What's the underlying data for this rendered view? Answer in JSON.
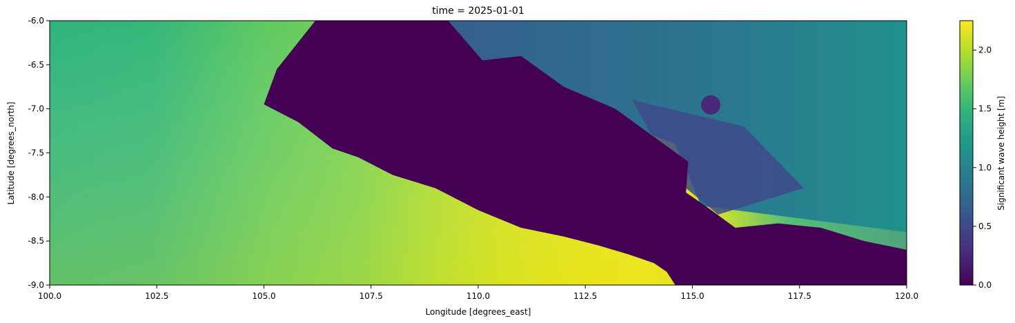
{
  "chart_data": {
    "type": "heatmap",
    "title": "time = 2025-01-01",
    "xlabel": "Longitude [degrees_east]",
    "ylabel": "Latitude [degrees_north]",
    "xlim": [
      100.0,
      120.0
    ],
    "ylim": [
      -9.0,
      -6.0
    ],
    "x_ticks": [
      "100.0",
      "102.5",
      "105.0",
      "107.5",
      "110.0",
      "112.5",
      "115.0",
      "117.5",
      "120.0"
    ],
    "y_ticks": [
      "-6.0",
      "-6.5",
      "-7.0",
      "-7.5",
      "-8.0",
      "-8.5",
      "-9.0"
    ],
    "x_tick_values": [
      100.0,
      102.5,
      105.0,
      107.5,
      110.0,
      112.5,
      115.0,
      117.5,
      120.0
    ],
    "y_tick_values": [
      -6.0,
      -6.5,
      -7.0,
      -7.5,
      -8.0,
      -8.5,
      -9.0
    ],
    "colorbar": {
      "label": "Significant wave height [m]",
      "range": [
        0.0,
        2.25
      ],
      "ticks": [
        "0.0",
        "0.5",
        "1.0",
        "1.5",
        "2.0"
      ],
      "tick_values": [
        0.0,
        0.5,
        1.0,
        1.5,
        2.0
      ],
      "colormap": "viridis"
    },
    "land_boundary_lon": [
      106.2,
      105.3,
      105.0,
      105.8,
      106.6,
      107.2,
      108.0,
      109.0,
      110.0,
      111.0,
      112.0,
      112.8,
      113.5,
      114.1,
      114.4,
      114.6
    ],
    "land_boundary_lat": [
      -6.0,
      -6.55,
      -6.95,
      -7.15,
      -7.45,
      -7.55,
      -7.75,
      -7.9,
      -8.15,
      -8.35,
      -8.45,
      -8.55,
      -8.65,
      -8.75,
      -8.85,
      -9.0
    ],
    "land_east_lon": [
      110.5,
      112.0,
      113.5,
      114.7,
      115.3,
      116.0,
      117.0,
      118.0,
      119.0,
      120.0
    ],
    "land_east_lat": [
      -6.6,
      -6.9,
      -7.1,
      -7.9,
      -8.1,
      -8.35,
      -8.3,
      -8.35,
      -8.5,
      -8.6
    ],
    "wave_samples": [
      {
        "lon": 100.5,
        "lat": -6.5,
        "value": 1.45
      },
      {
        "lon": 100.5,
        "lat": -8.5,
        "value": 1.55
      },
      {
        "lon": 103.0,
        "lat": -7.5,
        "value": 1.6
      },
      {
        "lon": 105.5,
        "lat": -8.5,
        "value": 1.85
      },
      {
        "lon": 108.5,
        "lat": -8.6,
        "value": 2.1
      },
      {
        "lon": 111.5,
        "lat": -8.9,
        "value": 2.25
      },
      {
        "lon": 113.5,
        "lat": -8.8,
        "value": 2.0
      },
      {
        "lon": 115.5,
        "lat": -8.9,
        "value": 1.3
      },
      {
        "lon": 116.0,
        "lat": -6.3,
        "value": 0.85
      },
      {
        "lon": 119.5,
        "lat": -6.5,
        "value": 1.05
      },
      {
        "lon": 116.5,
        "lat": -7.5,
        "value": 0.55
      }
    ]
  }
}
